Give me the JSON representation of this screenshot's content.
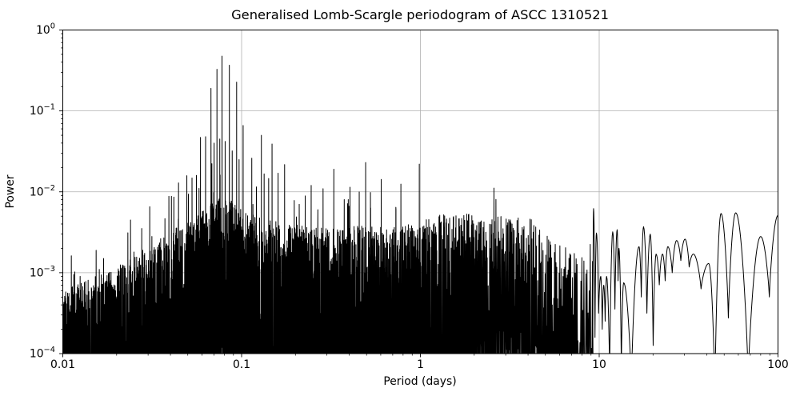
{
  "figure": {
    "background": "#ffffff"
  },
  "chart_data": {
    "type": "line",
    "title": "Generalised Lomb-Scargle periodogram of ASCC 1310521",
    "xlabel": "Period (days)",
    "ylabel": "Power",
    "xscale": "log",
    "yscale": "log",
    "xlim": [
      0.01,
      100
    ],
    "ylim": [
      0.0001,
      1
    ],
    "grid": true,
    "grid_color": "#b0b0b0",
    "line_color": "#000000",
    "axis_color": "#000000",
    "x_tick_values": [
      0.01,
      0.1,
      1,
      10,
      100
    ],
    "x_tick_labels": [
      "0.01",
      "0.1",
      "1",
      "10",
      "100"
    ],
    "y_tick_exponents": [
      0,
      -1,
      -2,
      -3,
      -4
    ],
    "description": "Dense noise spectrum rising from ~5e-4 at P=0.01 d to a cluster of alias peaks near P=0.078 d (max power 0.476), decaying noisy floor out to P~9 d, then smooth spectral-window lobes from P~10 to 100 d.",
    "main_peaks": [
      [
        0.0115,
        0.00095
      ],
      [
        0.0125,
        0.0009
      ],
      [
        0.016,
        0.0011
      ],
      [
        0.021,
        0.00125
      ],
      [
        0.025,
        0.0018
      ],
      [
        0.028,
        0.0019
      ],
      [
        0.0315,
        0.0028
      ],
      [
        0.0392,
        0.0088
      ],
      [
        0.0405,
        0.0088
      ],
      [
        0.0418,
        0.0086
      ],
      [
        0.0443,
        0.0046
      ],
      [
        0.0494,
        0.0158
      ],
      [
        0.0528,
        0.0148
      ],
      [
        0.0578,
        0.011
      ],
      [
        0.0589,
        0.047
      ],
      [
        0.0629,
        0.048
      ],
      [
        0.0674,
        0.19
      ],
      [
        0.0702,
        0.04
      ],
      [
        0.0728,
        0.327
      ],
      [
        0.0755,
        0.045
      ],
      [
        0.0777,
        0.476
      ],
      [
        0.0809,
        0.042
      ],
      [
        0.0854,
        0.367
      ],
      [
        0.0886,
        0.032
      ],
      [
        0.0938,
        0.227
      ],
      [
        0.0968,
        0.025
      ],
      [
        0.102,
        0.066
      ],
      [
        0.114,
        0.026
      ],
      [
        0.121,
        0.0115
      ],
      [
        0.129,
        0.05
      ],
      [
        0.148,
        0.039
      ],
      [
        0.16,
        0.017
      ],
      [
        0.174,
        0.0217
      ],
      [
        0.197,
        0.0078
      ],
      [
        0.21,
        0.007
      ],
      [
        0.245,
        0.012
      ],
      [
        0.267,
        0.006
      ],
      [
        0.328,
        0.019
      ],
      [
        0.375,
        0.008
      ],
      [
        0.395,
        0.008
      ],
      [
        0.494,
        0.023
      ],
      [
        0.527,
        0.0063
      ],
      [
        0.73,
        0.006
      ],
      [
        0.986,
        0.022
      ],
      [
        1.35,
        0.0052
      ],
      [
        1.75,
        0.0051
      ],
      [
        2.82,
        0.0048
      ],
      [
        4.1,
        0.0046
      ]
    ],
    "noise_logP_range": [
      -2.0,
      0.963
    ],
    "noise_envelope_log10": [
      [
        -2.0,
        -3.28
      ],
      [
        -1.92,
        -3.18
      ],
      [
        -1.85,
        -3.12
      ],
      [
        -1.78,
        -3.05
      ],
      [
        -1.7,
        -2.98
      ],
      [
        -1.6,
        -2.85
      ],
      [
        -1.52,
        -2.78
      ],
      [
        -1.44,
        -2.58
      ],
      [
        -1.38,
        -2.5
      ],
      [
        -1.3,
        -2.42
      ],
      [
        -1.24,
        -2.32
      ],
      [
        -1.17,
        -2.18
      ],
      [
        -1.11,
        -2.08
      ],
      [
        -1.05,
        -2.16
      ],
      [
        -1.0,
        -2.26
      ],
      [
        -0.92,
        -2.34
      ],
      [
        -0.82,
        -2.4
      ],
      [
        -0.7,
        -2.44
      ],
      [
        -0.58,
        -2.48
      ],
      [
        -0.48,
        -2.5
      ],
      [
        -0.38,
        -2.46
      ],
      [
        -0.28,
        -2.44
      ],
      [
        -0.18,
        -2.48
      ],
      [
        -0.08,
        -2.45
      ],
      [
        0.0,
        -2.4
      ],
      [
        0.1,
        -2.33
      ],
      [
        0.26,
        -2.3
      ],
      [
        0.36,
        -2.4
      ],
      [
        0.45,
        -2.34
      ],
      [
        0.62,
        -2.38
      ],
      [
        0.7,
        -2.55
      ],
      [
        0.78,
        -2.7
      ],
      [
        0.88,
        -2.76
      ],
      [
        0.963,
        -2.65
      ]
    ],
    "long_period_lobes": [
      [
        9.3,
        0.0062
      ],
      [
        9.65,
        0.0031
      ],
      [
        10.2,
        0.0009
      ],
      [
        10.6,
        0.0007
      ],
      [
        11.0,
        0.0009
      ],
      [
        11.9,
        0.0032
      ],
      [
        12.6,
        0.0034
      ],
      [
        12.9,
        0.002
      ],
      [
        13.7,
        0.00075
      ],
      [
        16.7,
        0.0021
      ],
      [
        17.7,
        0.0037
      ],
      [
        19.3,
        0.003
      ],
      [
        20.8,
        0.0017
      ],
      [
        22.6,
        0.0017
      ],
      [
        24.2,
        0.0021
      ],
      [
        27.1,
        0.0025
      ],
      [
        30.2,
        0.0026
      ],
      [
        33.6,
        0.0017
      ],
      [
        41,
        0.0013
      ],
      [
        48,
        0.0054
      ],
      [
        58,
        0.0055
      ],
      [
        80,
        0.0028
      ],
      [
        100,
        0.0051
      ]
    ],
    "lobe_troughs_log10": [
      -4.0,
      -3.8,
      -3.5,
      -3.7,
      -3.6,
      -4.3,
      -3.45,
      -3.1,
      -4.2,
      -4.4,
      -3.3,
      -3.5,
      -3.9,
      -3.15,
      -3.1,
      -3.0,
      -2.85,
      -2.93,
      -3.2,
      -4.5,
      -3.56,
      -4.3,
      -3.3
    ]
  }
}
